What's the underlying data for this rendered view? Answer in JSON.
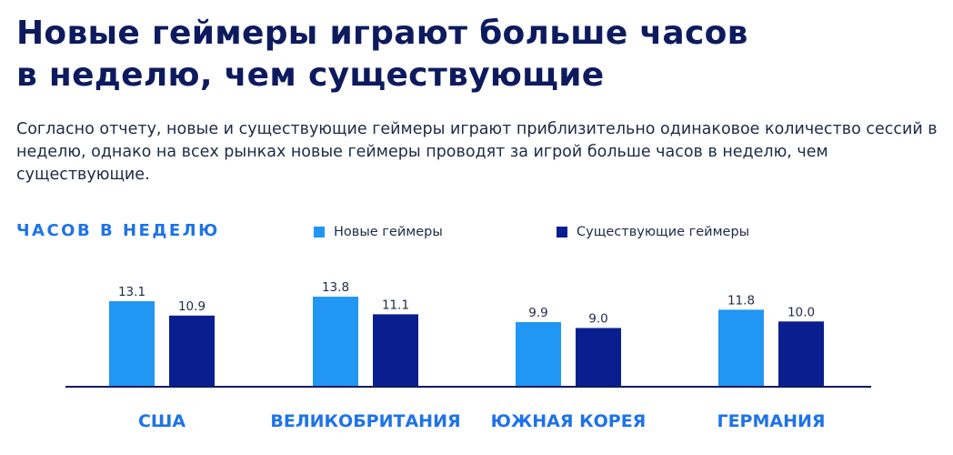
{
  "title_lines": [
    "Новые геймеры играют больше часов",
    "в неделю, чем существующие"
  ],
  "subtitle": "Согласно отчету, новые и существующие геймеры играют приблизительно одинаковое количество сессий в неделю, однако на всех рынках новые геймеры проводят за игрой больше часов в неделю, чем существующие.",
  "colors": {
    "new": "#2196f3",
    "existing": "#0a1f8f",
    "axis": "#0d1b5e",
    "category": "#1e73e8"
  },
  "chart_data": {
    "type": "bar",
    "ylabel": "ЧАСОВ В НЕДЕЛЮ",
    "categories": [
      "США",
      "ВЕЛИКОБРИТАНИЯ",
      "ЮЖНАЯ КОРЕЯ",
      "ГЕРМАНИЯ"
    ],
    "series": [
      {
        "name": "Новые геймеры",
        "values": [
          13.1,
          13.8,
          9.9,
          11.8
        ],
        "color": "#2196f3"
      },
      {
        "name": "Существующие геймеры",
        "values": [
          10.9,
          11.1,
          9.0,
          10.0
        ],
        "color": "#0a1f8f"
      }
    ],
    "value_labels": [
      [
        "13.1",
        "13.8",
        "9.9",
        "11.8"
      ],
      [
        "10.9",
        "11.1",
        "9.0",
        "10.0"
      ]
    ],
    "ylim": [
      0,
      13.8
    ],
    "legend_position": "top"
  }
}
